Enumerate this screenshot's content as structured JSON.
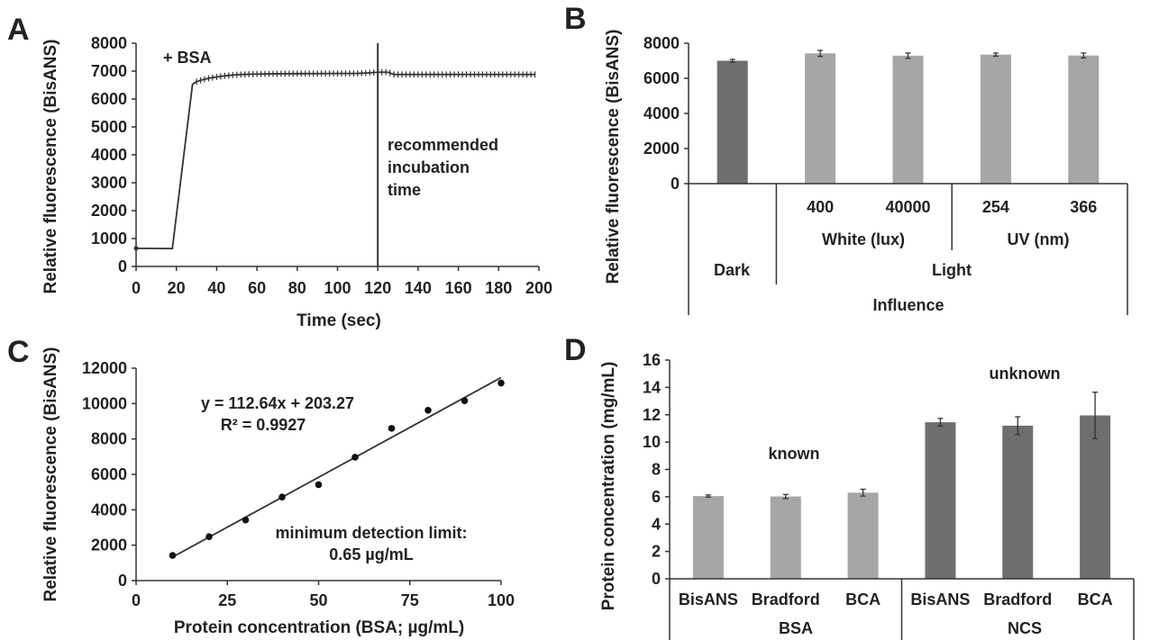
{
  "chart_data": [
    {
      "panel": "A",
      "type": "line",
      "xlabel": "Time (sec)",
      "ylabel": "Relative fluorescence (BisANS)",
      "xlim": [
        0,
        200
      ],
      "ylim": [
        0,
        8000
      ],
      "xticks": [
        0,
        20,
        40,
        60,
        80,
        100,
        120,
        140,
        160,
        180,
        200
      ],
      "yticks": [
        0,
        1000,
        2000,
        3000,
        4000,
        5000,
        6000,
        7000,
        8000
      ],
      "annotations": {
        "addition": "+ BSA",
        "incubation": [
          "recommended",
          "incubation",
          "time"
        ]
      },
      "marker_x": 120,
      "error_bar_halfwidth": 110,
      "series": [
        {
          "x": [
            0,
            18,
            28,
            29,
            30,
            32,
            34,
            36,
            38,
            40,
            42,
            44,
            46,
            48,
            50,
            55,
            60,
            70,
            80,
            90,
            100,
            110,
            115,
            120,
            125,
            128,
            130,
            140,
            160,
            180,
            198
          ],
          "y": [
            650,
            640,
            6520,
            6580,
            6620,
            6670,
            6710,
            6740,
            6770,
            6790,
            6810,
            6830,
            6845,
            6860,
            6870,
            6885,
            6895,
            6905,
            6910,
            6912,
            6915,
            6918,
            6935,
            6960,
            6960,
            6880,
            6880,
            6880,
            6880,
            6880,
            6880
          ]
        }
      ]
    },
    {
      "panel": "B",
      "type": "bar",
      "ylabel": "Relative fluorescence (BisANS)",
      "ylim": [
        0,
        8000
      ],
      "yticks": [
        0,
        2000,
        4000,
        6000,
        8000
      ],
      "bars": [
        {
          "category": "",
          "value": 7000,
          "error": 80,
          "color": "#6e6e6e"
        },
        {
          "category": "400",
          "value": 7420,
          "error": 170,
          "color": "#a6a6a6"
        },
        {
          "category": "40000",
          "value": 7290,
          "error": 150,
          "color": "#a6a6a6"
        },
        {
          "category": "254",
          "value": 7350,
          "error": 90,
          "color": "#a6a6a6"
        },
        {
          "category": "366",
          "value": 7300,
          "error": 140,
          "color": "#a6a6a6"
        }
      ],
      "group_labels": {
        "white": "White (lux)",
        "uv": "UV (nm)",
        "dark": "Dark",
        "light": "Light",
        "influence": "Influence"
      }
    },
    {
      "panel": "C",
      "type": "scatter",
      "xlabel": "Protein concentration (BSA; µg/mL)",
      "ylabel": "Relative fluorescence (BisANS)",
      "xlim": [
        0,
        100
      ],
      "ylim": [
        0,
        12000
      ],
      "xticks": [
        0,
        25,
        50,
        75,
        100
      ],
      "yticks": [
        0,
        2000,
        4000,
        6000,
        8000,
        10000,
        12000
      ],
      "x": [
        10,
        20,
        30,
        40,
        50,
        60,
        70,
        80,
        90,
        100
      ],
      "y": [
        1420,
        2480,
        3420,
        4720,
        5420,
        6970,
        8600,
        9620,
        10160,
        11160
      ],
      "fit": {
        "slope": 112.64,
        "intercept": 203.27,
        "x_range": [
          10,
          100
        ]
      },
      "equation": "y = 112.64x + 203.27",
      "r2": "R² = 0.9927",
      "detection": [
        "minimum detection limit:",
        "0.65 µg/mL"
      ]
    },
    {
      "panel": "D",
      "type": "bar",
      "ylabel": "Protein concentration (mg/mL)",
      "ylim": [
        0,
        16
      ],
      "yticks": [
        0,
        2,
        4,
        6,
        8,
        10,
        12,
        14,
        16
      ],
      "groups": [
        {
          "name": "BSA",
          "note": "known",
          "color": "#a6a6a6",
          "bars": [
            {
              "category": "BisANS",
              "value": 6.05,
              "error": 0.08
            },
            {
              "category": "Bradford",
              "value": 6.02,
              "error": 0.15
            },
            {
              "category": "BCA",
              "value": 6.3,
              "error": 0.25
            }
          ]
        },
        {
          "name": "NCS",
          "note": "unknown",
          "color": "#6e6e6e",
          "bars": [
            {
              "category": "BisANS",
              "value": 11.45,
              "error": 0.28
            },
            {
              "category": "Bradford",
              "value": 11.2,
              "error": 0.65
            },
            {
              "category": "BCA",
              "value": 11.95,
              "error": 1.7
            }
          ]
        }
      ]
    }
  ],
  "panel_letters": [
    "A",
    "B",
    "C",
    "D"
  ]
}
